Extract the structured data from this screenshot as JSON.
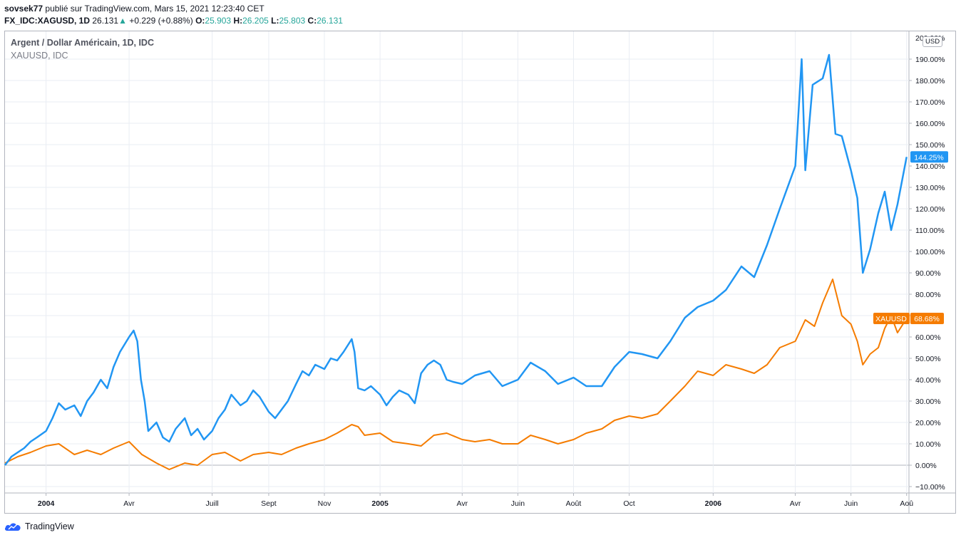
{
  "header": {
    "author": "sovsek77",
    "published_text": "publié sur TradingView.com, Mars 15, 2021 12:23:40 CET",
    "symbol": "FX_IDC:XAGUSD, 1D",
    "last": "26.131",
    "change_arrow": "▲",
    "change": "+0.229 (+0.88%)",
    "o_label": "O:",
    "o_value": "25.903",
    "h_label": "H:",
    "h_value": "26.205",
    "l_label": "L:",
    "l_value": "25.803",
    "c_label": "C:",
    "c_value": "26.131"
  },
  "legend": {
    "title": "Argent / Dollar Américain, 1D, IDC",
    "subtitle": "XAUUSD, IDC"
  },
  "axis": {
    "currency": "USD"
  },
  "footer": {
    "brand": "TradingView"
  },
  "colors": {
    "silver_series": "#2196f3",
    "gold_series": "#f57c00",
    "grid": "#e9edf3",
    "zero_line": "#b2b5be"
  },
  "chart_data": {
    "type": "line",
    "y_unit": "%",
    "ylim": [
      -10,
      200
    ],
    "y_ticks": [
      -10,
      0,
      10,
      20,
      30,
      40,
      50,
      60,
      70,
      80,
      90,
      100,
      110,
      120,
      130,
      140,
      150,
      160,
      170,
      180,
      190
    ],
    "y_tick_labels": [
      "−10.00%",
      "0.00%",
      "10.00%",
      "20.00%",
      "30.00%",
      "40.00%",
      "50.00%",
      "60.00%",
      "70.00%",
      "80.00%",
      "90.00%",
      "100.00%",
      "110.00%",
      "120.00%",
      "130.00%",
      "140.00%",
      "150.00%",
      "160.00%",
      "170.00%",
      "180.00%",
      "190.00%"
    ],
    "top_cut_label": "200.00%",
    "xlim": [
      "2003-11-17",
      "2006-08-02"
    ],
    "x_ticks": [
      {
        "date": "2004-01-01",
        "label": "2004",
        "bold": true
      },
      {
        "date": "2004-04-01",
        "label": "Avr",
        "bold": false
      },
      {
        "date": "2004-07-01",
        "label": "Juill",
        "bold": false
      },
      {
        "date": "2004-09-01",
        "label": "Sept",
        "bold": false
      },
      {
        "date": "2004-11-01",
        "label": "Nov",
        "bold": false
      },
      {
        "date": "2005-01-01",
        "label": "2005",
        "bold": true
      },
      {
        "date": "2005-04-01",
        "label": "Avr",
        "bold": false
      },
      {
        "date": "2005-06-01",
        "label": "Juin",
        "bold": false
      },
      {
        "date": "2005-08-01",
        "label": "Août",
        "bold": false
      },
      {
        "date": "2005-10-01",
        "label": "Oct",
        "bold": false
      },
      {
        "date": "2006-01-01",
        "label": "2006",
        "bold": true
      },
      {
        "date": "2006-04-01",
        "label": "Avr",
        "bold": false
      },
      {
        "date": "2006-06-01",
        "label": "Juin",
        "bold": false
      },
      {
        "date": "2006-08-01",
        "label": "Aoû",
        "bold": false
      }
    ],
    "series": [
      {
        "key": "silver",
        "color": "#2196f3",
        "last_label": "144.25%",
        "last_value": 144.25,
        "points": [
          [
            "2003-11-17",
            0
          ],
          [
            "2003-11-24",
            4
          ],
          [
            "2003-12-01",
            6
          ],
          [
            "2003-12-08",
            8
          ],
          [
            "2003-12-15",
            11
          ],
          [
            "2003-12-22",
            13
          ],
          [
            "2004-01-01",
            16
          ],
          [
            "2004-01-08",
            22
          ],
          [
            "2004-01-15",
            29
          ],
          [
            "2004-01-22",
            26
          ],
          [
            "2004-02-01",
            28
          ],
          [
            "2004-02-08",
            23
          ],
          [
            "2004-02-15",
            30
          ],
          [
            "2004-02-22",
            34
          ],
          [
            "2004-03-01",
            40
          ],
          [
            "2004-03-08",
            36
          ],
          [
            "2004-03-15",
            46
          ],
          [
            "2004-03-22",
            53
          ],
          [
            "2004-04-01",
            60
          ],
          [
            "2004-04-06",
            63
          ],
          [
            "2004-04-10",
            58
          ],
          [
            "2004-04-14",
            40
          ],
          [
            "2004-04-18",
            30
          ],
          [
            "2004-04-22",
            16
          ],
          [
            "2004-05-01",
            20
          ],
          [
            "2004-05-08",
            13
          ],
          [
            "2004-05-15",
            11
          ],
          [
            "2004-05-22",
            17
          ],
          [
            "2004-06-01",
            22
          ],
          [
            "2004-06-08",
            14
          ],
          [
            "2004-06-15",
            17
          ],
          [
            "2004-06-22",
            12
          ],
          [
            "2004-07-01",
            16
          ],
          [
            "2004-07-08",
            22
          ],
          [
            "2004-07-15",
            26
          ],
          [
            "2004-07-22",
            33
          ],
          [
            "2004-08-01",
            28
          ],
          [
            "2004-08-08",
            30
          ],
          [
            "2004-08-15",
            35
          ],
          [
            "2004-08-22",
            32
          ],
          [
            "2004-09-01",
            25
          ],
          [
            "2004-09-08",
            22
          ],
          [
            "2004-09-15",
            26
          ],
          [
            "2004-09-22",
            30
          ],
          [
            "2004-10-01",
            38
          ],
          [
            "2004-10-08",
            44
          ],
          [
            "2004-10-15",
            42
          ],
          [
            "2004-10-22",
            47
          ],
          [
            "2004-11-01",
            45
          ],
          [
            "2004-11-08",
            50
          ],
          [
            "2004-11-15",
            49
          ],
          [
            "2004-11-22",
            53
          ],
          [
            "2004-12-01",
            59
          ],
          [
            "2004-12-04",
            53
          ],
          [
            "2004-12-08",
            36
          ],
          [
            "2004-12-15",
            35
          ],
          [
            "2004-12-22",
            37
          ],
          [
            "2005-01-01",
            33
          ],
          [
            "2005-01-08",
            28
          ],
          [
            "2005-01-15",
            32
          ],
          [
            "2005-01-22",
            35
          ],
          [
            "2005-02-01",
            33
          ],
          [
            "2005-02-08",
            29
          ],
          [
            "2005-02-15",
            43
          ],
          [
            "2005-02-22",
            47
          ],
          [
            "2005-03-01",
            49
          ],
          [
            "2005-03-08",
            47
          ],
          [
            "2005-03-15",
            40
          ],
          [
            "2005-03-22",
            39
          ],
          [
            "2005-04-01",
            38
          ],
          [
            "2005-04-15",
            42
          ],
          [
            "2005-05-01",
            44
          ],
          [
            "2005-05-15",
            37
          ],
          [
            "2005-06-01",
            40
          ],
          [
            "2005-06-15",
            48
          ],
          [
            "2005-07-01",
            44
          ],
          [
            "2005-07-15",
            38
          ],
          [
            "2005-08-01",
            41
          ],
          [
            "2005-08-15",
            37
          ],
          [
            "2005-09-01",
            37
          ],
          [
            "2005-09-15",
            46
          ],
          [
            "2005-10-01",
            53
          ],
          [
            "2005-10-15",
            52
          ],
          [
            "2005-11-01",
            50
          ],
          [
            "2005-11-15",
            58
          ],
          [
            "2005-12-01",
            69
          ],
          [
            "2005-12-15",
            74
          ],
          [
            "2006-01-01",
            77
          ],
          [
            "2006-01-15",
            82
          ],
          [
            "2006-02-01",
            93
          ],
          [
            "2006-02-15",
            88
          ],
          [
            "2006-03-01",
            103
          ],
          [
            "2006-03-15",
            120
          ],
          [
            "2006-04-01",
            140
          ],
          [
            "2006-04-08",
            190
          ],
          [
            "2006-04-12",
            138
          ],
          [
            "2006-04-20",
            178
          ],
          [
            "2006-05-01",
            181
          ],
          [
            "2006-05-08",
            192
          ],
          [
            "2006-05-15",
            155
          ],
          [
            "2006-05-22",
            154
          ],
          [
            "2006-06-01",
            138
          ],
          [
            "2006-06-08",
            125
          ],
          [
            "2006-06-14",
            90
          ],
          [
            "2006-06-22",
            101
          ],
          [
            "2006-07-01",
            118
          ],
          [
            "2006-07-08",
            128
          ],
          [
            "2006-07-15",
            110
          ],
          [
            "2006-07-22",
            122
          ],
          [
            "2006-08-01",
            144.25
          ]
        ]
      },
      {
        "key": "gold",
        "name": "XAUUSD",
        "color": "#f57c00",
        "last_label": "68.68%",
        "last_value": 68.68,
        "points": [
          [
            "2003-11-17",
            1
          ],
          [
            "2003-12-01",
            4
          ],
          [
            "2003-12-15",
            6
          ],
          [
            "2004-01-01",
            9
          ],
          [
            "2004-01-15",
            10
          ],
          [
            "2004-02-01",
            5
          ],
          [
            "2004-02-15",
            7
          ],
          [
            "2004-03-01",
            5
          ],
          [
            "2004-03-15",
            8
          ],
          [
            "2004-04-01",
            11
          ],
          [
            "2004-04-15",
            5
          ],
          [
            "2004-05-01",
            1
          ],
          [
            "2004-05-15",
            -2
          ],
          [
            "2004-06-01",
            1
          ],
          [
            "2004-06-15",
            0
          ],
          [
            "2004-07-01",
            5
          ],
          [
            "2004-07-15",
            6
          ],
          [
            "2004-08-01",
            2
          ],
          [
            "2004-08-15",
            5
          ],
          [
            "2004-09-01",
            6
          ],
          [
            "2004-09-15",
            5
          ],
          [
            "2004-10-01",
            8
          ],
          [
            "2004-10-15",
            10
          ],
          [
            "2004-11-01",
            12
          ],
          [
            "2004-11-15",
            15
          ],
          [
            "2004-12-01",
            19
          ],
          [
            "2004-12-08",
            18
          ],
          [
            "2004-12-15",
            14
          ],
          [
            "2005-01-01",
            15
          ],
          [
            "2005-01-15",
            11
          ],
          [
            "2005-02-01",
            10
          ],
          [
            "2005-02-15",
            9
          ],
          [
            "2005-03-01",
            14
          ],
          [
            "2005-03-15",
            15
          ],
          [
            "2005-04-01",
            12
          ],
          [
            "2005-04-15",
            11
          ],
          [
            "2005-05-01",
            12
          ],
          [
            "2005-05-15",
            10
          ],
          [
            "2005-06-01",
            10
          ],
          [
            "2005-06-15",
            14
          ],
          [
            "2005-07-01",
            12
          ],
          [
            "2005-07-15",
            10
          ],
          [
            "2005-08-01",
            12
          ],
          [
            "2005-08-15",
            15
          ],
          [
            "2005-09-01",
            17
          ],
          [
            "2005-09-15",
            21
          ],
          [
            "2005-10-01",
            23
          ],
          [
            "2005-10-15",
            22
          ],
          [
            "2005-11-01",
            24
          ],
          [
            "2005-11-15",
            30
          ],
          [
            "2005-12-01",
            37
          ],
          [
            "2005-12-15",
            44
          ],
          [
            "2006-01-01",
            42
          ],
          [
            "2006-01-15",
            47
          ],
          [
            "2006-02-01",
            45
          ],
          [
            "2006-02-15",
            43
          ],
          [
            "2006-03-01",
            47
          ],
          [
            "2006-03-15",
            55
          ],
          [
            "2006-04-01",
            58
          ],
          [
            "2006-04-12",
            68
          ],
          [
            "2006-04-22",
            65
          ],
          [
            "2006-05-01",
            76
          ],
          [
            "2006-05-12",
            87
          ],
          [
            "2006-05-22",
            70
          ],
          [
            "2006-06-01",
            66
          ],
          [
            "2006-06-08",
            58
          ],
          [
            "2006-06-14",
            47
          ],
          [
            "2006-06-22",
            52
          ],
          [
            "2006-07-01",
            55
          ],
          [
            "2006-07-08",
            64
          ],
          [
            "2006-07-15",
            70
          ],
          [
            "2006-07-22",
            62
          ],
          [
            "2006-08-01",
            68.68
          ]
        ]
      }
    ]
  }
}
